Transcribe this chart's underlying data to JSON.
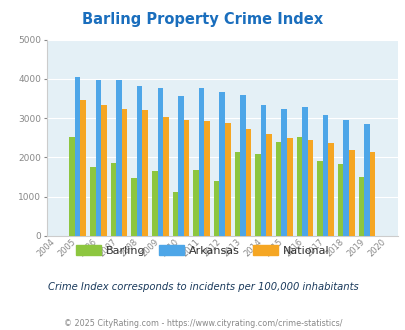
{
  "title": "Barling Property Crime Index",
  "plot_years": [
    2005,
    2006,
    2007,
    2008,
    2009,
    2010,
    2011,
    2012,
    2013,
    2014,
    2015,
    2016,
    2017,
    2018,
    2019
  ],
  "barling": [
    2520,
    1750,
    1850,
    1470,
    1650,
    1130,
    1680,
    1390,
    2130,
    2090,
    2390,
    2530,
    1920,
    1840,
    1510
  ],
  "arkansas": [
    4050,
    3960,
    3960,
    3830,
    3770,
    3570,
    3760,
    3660,
    3590,
    3340,
    3240,
    3280,
    3080,
    2940,
    2860
  ],
  "national": [
    3450,
    3340,
    3240,
    3210,
    3040,
    2940,
    2920,
    2870,
    2720,
    2600,
    2490,
    2450,
    2360,
    2200,
    2130
  ],
  "all_xtick_labels": [
    "2004",
    "2005",
    "2006",
    "2007",
    "2008",
    "2009",
    "2010",
    "2011",
    "2012",
    "2013",
    "2014",
    "2015",
    "2016",
    "2017",
    "2018",
    "2019",
    "2020"
  ],
  "barling_color": "#8dc63f",
  "arkansas_color": "#4da6e8",
  "national_color": "#f5a623",
  "bg_color": "#e4f0f6",
  "title_color": "#1a6ebd",
  "subtitle": "Crime Index corresponds to incidents per 100,000 inhabitants",
  "footer": "© 2025 CityRating.com - https://www.cityrating.com/crime-statistics/",
  "ylim": [
    0,
    5000
  ],
  "yticks": [
    0,
    1000,
    2000,
    3000,
    4000,
    5000
  ],
  "grid_color": "#ffffff",
  "spine_color": "#cccccc",
  "tick_color": "#888888",
  "legend_labels": [
    "Barling",
    "Arkansas",
    "National"
  ],
  "subtitle_color": "#1a3a5c",
  "footer_color": "#888888"
}
